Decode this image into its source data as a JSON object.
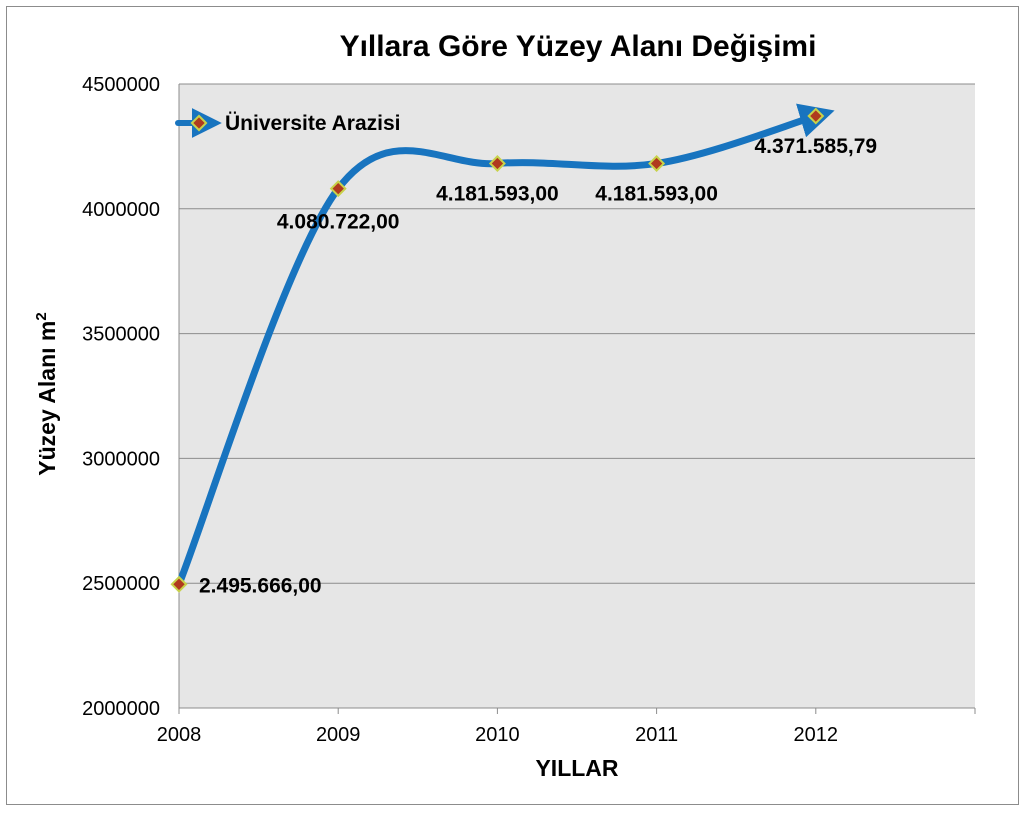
{
  "chart_data": {
    "type": "line",
    "title": "Yıllara Göre Yüzey Alanı Değişimi",
    "xlabel": "YILLAR",
    "ylabel_main": "Yüzey Alanı m",
    "ylabel_sup": "2",
    "categories": [
      "2008",
      "2009",
      "2010",
      "2011",
      "2012"
    ],
    "series": [
      {
        "name": "Üniversite Arazisi",
        "values": [
          2495666.0,
          4080722.0,
          4181593.0,
          4181593.0,
          4371585.79
        ],
        "labels": [
          "2.495.666,00",
          "4.080.722,00",
          "4.181.593,00",
          "4.181.593,00",
          "4.371.585,79"
        ]
      }
    ],
    "yticks": [
      "2000000",
      "2500000",
      "3000000",
      "3500000",
      "4000000",
      "4500000"
    ],
    "ylim": [
      2000000,
      4500000
    ],
    "grid": true,
    "legend_position": "top-left",
    "line_style": "smoothed-with-end-arrow",
    "colors": {
      "line": "#1874bf",
      "marker_fill": "#b03a1e",
      "marker_border": "#c8d24a",
      "plot_background": "#e6e6e6",
      "gridline": "#8c8c8c"
    }
  }
}
